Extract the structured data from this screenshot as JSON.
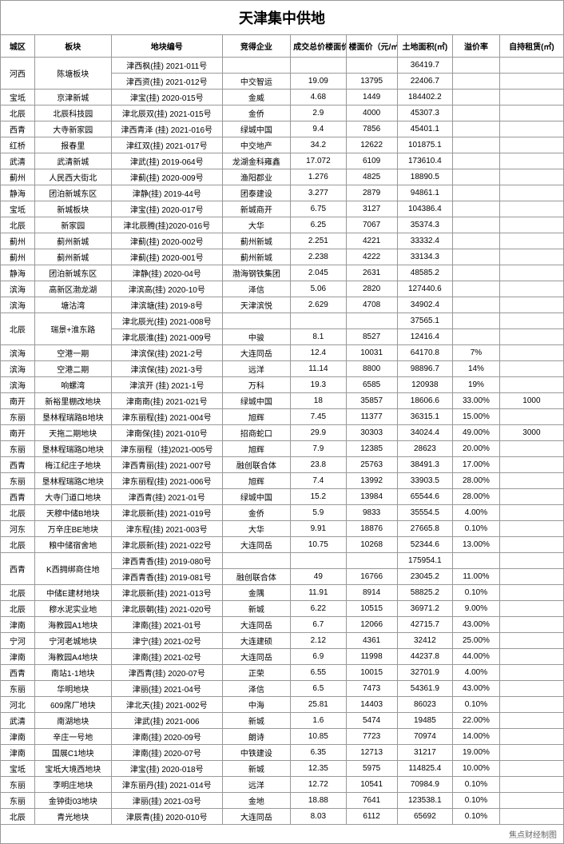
{
  "title": "天津集中供地",
  "footer": "焦点财经制图",
  "columns": [
    "城区",
    "板块",
    "地块编号",
    "竞得企业",
    "成交总价楼面价（亿元）",
    "楼面价（元/㎡)",
    "土地面积(㎡)",
    "溢价率",
    "自持租赁(㎡)"
  ],
  "rows": [
    [
      "河西",
      "陈塘板块",
      "津西枫(挂) 2021-011号",
      "",
      "",
      "",
      "36419.7",
      "",
      ""
    ],
    [
      "",
      "",
      "津西资(挂) 2021-012号",
      "中交智运",
      "19.09",
      "13795",
      "22406.7",
      "",
      ""
    ],
    [
      "宝坻",
      "京津新城",
      "津宝(挂) 2020-015号",
      "金威",
      "4.68",
      "1449",
      "184402.2",
      "",
      ""
    ],
    [
      "北辰",
      "北辰科技园",
      "津北辰双(挂) 2021-015号",
      "金侨",
      "2.9",
      "4000",
      "45307.3",
      "",
      ""
    ],
    [
      "西青",
      "大寺新家园",
      "津西青泽 (挂) 2021-016号",
      "绿城中国",
      "9.4",
      "7856",
      "45401.1",
      "",
      ""
    ],
    [
      "红桥",
      "报春里",
      "津红双(挂) 2021-017号",
      "中交地产",
      "34.2",
      "12622",
      "101875.1",
      "",
      ""
    ],
    [
      "武清",
      "武清新城",
      "津武(挂) 2019-064号",
      "龙湖金科雍鑫",
      "17.072",
      "6109",
      "173610.4",
      "",
      ""
    ],
    [
      "蓟州",
      "人民西大街北",
      "津蓟(挂) 2020-009号",
      "渔阳郡业",
      "1.276",
      "4825",
      "18890.5",
      "",
      ""
    ],
    [
      "静海",
      "团泊新城东区",
      "津静(挂) 2019-44号",
      "团泰建设",
      "3.277",
      "2879",
      "94861.1",
      "",
      ""
    ],
    [
      "宝坻",
      "新城板块",
      "津宝(挂) 2020-017号",
      "新城商开",
      "6.75",
      "3127",
      "104386.4",
      "",
      ""
    ],
    [
      "北辰",
      "新家园",
      "津北辰腾(挂)2020-016号",
      "大华",
      "6.25",
      "7067",
      "35374.3",
      "",
      ""
    ],
    [
      "蓟州",
      "蓟州新城",
      "津蓟(挂) 2020-002号",
      "蓟州新城",
      "2.251",
      "4221",
      "33332.4",
      "",
      ""
    ],
    [
      "蓟州",
      "蓟州新城",
      "津蓟(挂) 2020-001号",
      "蓟州新城",
      "2.238",
      "4222",
      "33134.3",
      "",
      ""
    ],
    [
      "静海",
      "团泊新城东区",
      "津静(挂) 2020-04号",
      "渤海钢铁集团",
      "2.045",
      "2631",
      "48585.2",
      "",
      ""
    ],
    [
      "滨海",
      "高新区渤龙湖",
      "津滨高(挂) 2020-10号",
      "泽信",
      "5.06",
      "2820",
      "127440.6",
      "",
      ""
    ],
    [
      "滨海",
      "塘沽湾",
      "津滨塘(挂) 2019-8号",
      "天津滨悦",
      "2.629",
      "4708",
      "34902.4",
      "",
      ""
    ],
    [
      "北辰",
      "瑞景+淮东路",
      "津北辰光(挂) 2021-008号",
      "",
      "",
      "",
      "37565.1",
      "",
      ""
    ],
    [
      "",
      "",
      "津北辰淮(挂) 2021-009号",
      "中骏",
      "8.1",
      "8527",
      "12416.4",
      "",
      ""
    ],
    [
      "滨海",
      "空港一期",
      "津滨保(挂) 2021-2号",
      "大连同岳",
      "12.4",
      "10031",
      "64170.8",
      "7%",
      ""
    ],
    [
      "滨海",
      "空港二期",
      "津滨保(挂) 2021-3号",
      "远洋",
      "11.14",
      "8800",
      "98896.7",
      "14%",
      ""
    ],
    [
      "滨海",
      "响螺湾",
      "津滨开 (挂) 2021-1号",
      "万科",
      "19.3",
      "6585",
      "120938",
      "19%",
      ""
    ],
    [
      "南开",
      "新裕里棚改地块",
      "津南南(挂) 2021-021号",
      "绿城中国",
      "18",
      "35857",
      "18606.6",
      "33.00%",
      "1000"
    ],
    [
      "东丽",
      "垦林程瑞路B地块",
      "津东丽程(挂) 2021-004号",
      "旭辉",
      "7.45",
      "11377",
      "36315.1",
      "15.00%",
      ""
    ],
    [
      "南开",
      "天拖二期地块",
      "津南保(挂) 2021-010号",
      "招商蛇口",
      "29.9",
      "30303",
      "34024.4",
      "49.00%",
      "3000"
    ],
    [
      "东丽",
      "垦林程瑞路D地块",
      "津东丽程（挂)2021-005号",
      "旭辉",
      "7.9",
      "12385",
      "28623",
      "20.00%",
      ""
    ],
    [
      "西青",
      "梅江纪庄子地块",
      "津西青丽(挂) 2021-007号",
      "融创联合体",
      "23.8",
      "25763",
      "38491.3",
      "17.00%",
      ""
    ],
    [
      "东丽",
      "垦林程瑞路C地块",
      "津东丽程(挂) 2021-006号",
      "旭辉",
      "7.4",
      "13992",
      "33903.5",
      "28.00%",
      ""
    ],
    [
      "西青",
      "大寺门道口地块",
      "津西青(挂) 2021-01号",
      "绿城中国",
      "15.2",
      "13984",
      "65544.6",
      "28.00%",
      ""
    ],
    [
      "北辰",
      "天穆中储B地块",
      "津北辰新(挂) 2021-019号",
      "金侨",
      "5.9",
      "9833",
      "35554.5",
      "4.00%",
      ""
    ],
    [
      "河东",
      "万辛庄BE地块",
      "津东程(挂) 2021-003号",
      "大华",
      "9.91",
      "18876",
      "27665.8",
      "0.10%",
      ""
    ],
    [
      "北辰",
      "粮中储宿舍地",
      "津北辰新(挂) 2021-022号",
      "大连同岳",
      "10.75",
      "10268",
      "52344.6",
      "13.00%",
      ""
    ],
    [
      "西青",
      "K西拥绑商住地",
      "津西青香(挂) 2019-080号",
      "",
      "",
      "",
      "175954.1",
      "",
      ""
    ],
    [
      "",
      "",
      "津西青香(挂) 2019-081号",
      "融创联合体",
      "49",
      "16766",
      "23045.2",
      "11.00%",
      ""
    ],
    [
      "北辰",
      "中储E建材地块",
      "津北辰新(挂) 2021-013号",
      "金隅",
      "11.91",
      "8914",
      "58825.2",
      "0.10%",
      ""
    ],
    [
      "北辰",
      "穆水泥实业地",
      "津北辰朝(挂) 2021-020号",
      "新城",
      "6.22",
      "10515",
      "36971.2",
      "9.00%",
      ""
    ],
    [
      "津南",
      "海教园A1地块",
      "津南(挂) 2021-01号",
      "大连同岳",
      "6.7",
      "12066",
      "42715.7",
      "43.00%",
      ""
    ],
    [
      "宁河",
      "宁河老城地块",
      "津宁(挂) 2021-02号",
      "大连建硕",
      "2.12",
      "4361",
      "32412",
      "25.00%",
      ""
    ],
    [
      "津南",
      "海教园A4地块",
      "津南(挂) 2021-02号",
      "大连同岳",
      "6.9",
      "11998",
      "44237.8",
      "44.00%",
      ""
    ],
    [
      "西青",
      "南站1-1地块",
      "津西青(挂) 2020-07号",
      "正荣",
      "6.55",
      "10015",
      "32701.9",
      "4.00%",
      ""
    ],
    [
      "东丽",
      "华明地块",
      "津丽(挂) 2021-04号",
      "泽信",
      "6.5",
      "7473",
      "54361.9",
      "43.00%",
      ""
    ],
    [
      "河北",
      "609席厂地块",
      "津北天(挂) 2021-002号",
      "中海",
      "25.81",
      "14403",
      "86023",
      "0.10%",
      ""
    ],
    [
      "武清",
      "南湖地块",
      "津武(挂) 2021-006",
      "新城",
      "1.6",
      "5474",
      "19485",
      "22.00%",
      ""
    ],
    [
      "津南",
      "辛庄一号地",
      "津南(挂) 2020-09号",
      "朗诗",
      "10.85",
      "7723",
      "70974",
      "14.00%",
      ""
    ],
    [
      "津南",
      "国展C1地块",
      "津南(挂) 2020-07号",
      "中铁建设",
      "6.35",
      "12713",
      "31217",
      "19.00%",
      ""
    ],
    [
      "宝坻",
      "宝坻大境西地块",
      "津宝(挂) 2020-018号",
      "新城",
      "12.35",
      "5975",
      "114825.4",
      "10.00%",
      ""
    ],
    [
      "东丽",
      "李明庄地块",
      "津东丽丹(挂) 2021-014号",
      "远洋",
      "12.72",
      "10541",
      "70984.9",
      "0.10%",
      ""
    ],
    [
      "东丽",
      "金钟街03地块",
      "津丽(挂) 2021-03号",
      "金地",
      "18.88",
      "7641",
      "123538.1",
      "0.10%",
      ""
    ],
    [
      "北辰",
      "青光地块",
      "津辰青(挂) 2020-010号",
      "大连同岳",
      "8.03",
      "6112",
      "65692",
      "0.10%",
      ""
    ]
  ]
}
